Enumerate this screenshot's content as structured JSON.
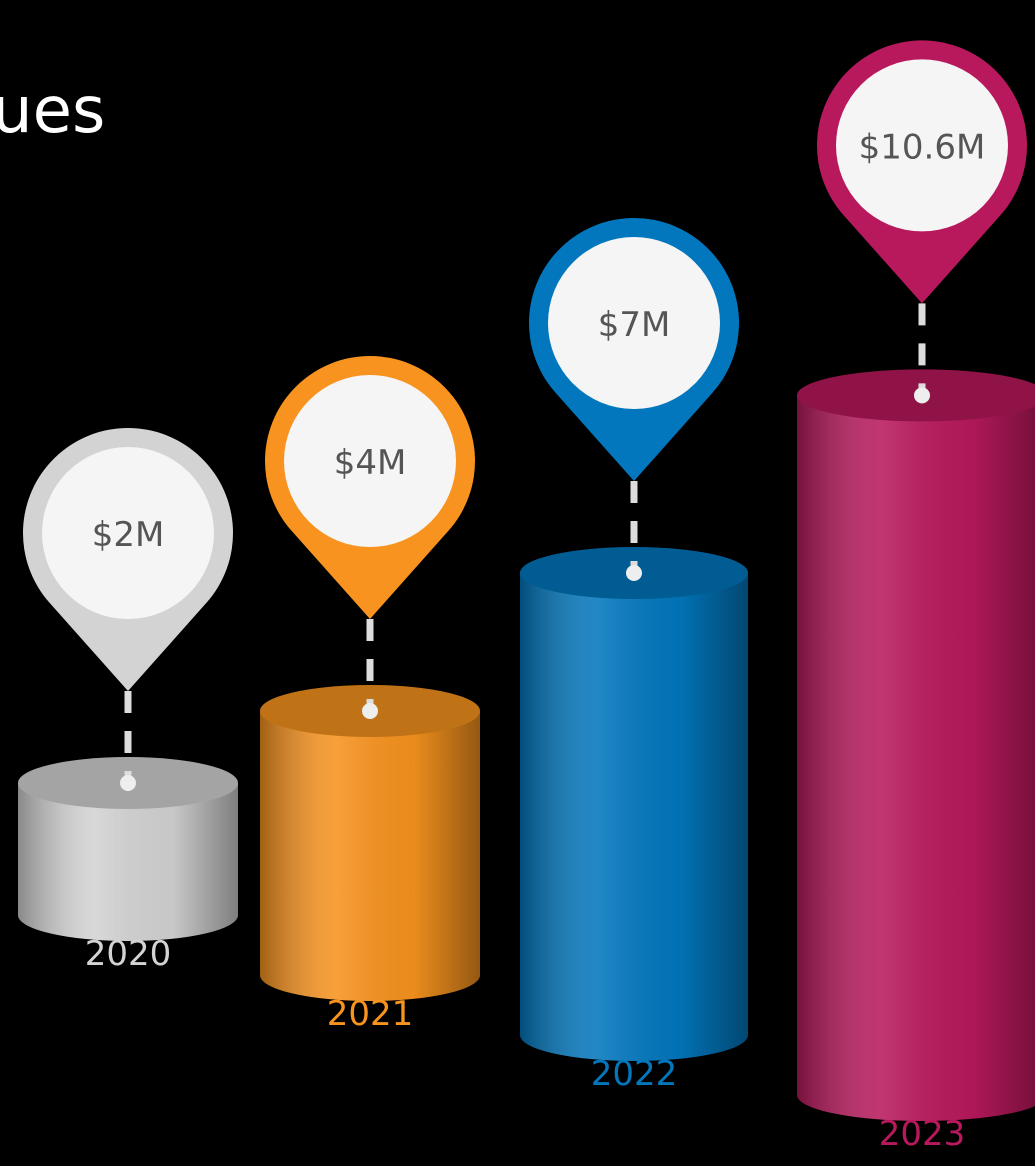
{
  "chart_data": {
    "type": "cylinder-pin",
    "title": "ues",
    "categories": [
      "2020",
      "2021",
      "2022",
      "2023"
    ],
    "values": [
      2,
      4,
      7,
      10.6
    ],
    "value_labels": [
      "$2M",
      "$4M",
      "$7M",
      "$10.6M"
    ],
    "colors": [
      "#d3d3d3",
      "#f7931e",
      "#0277bd",
      "#b8195c"
    ]
  }
}
